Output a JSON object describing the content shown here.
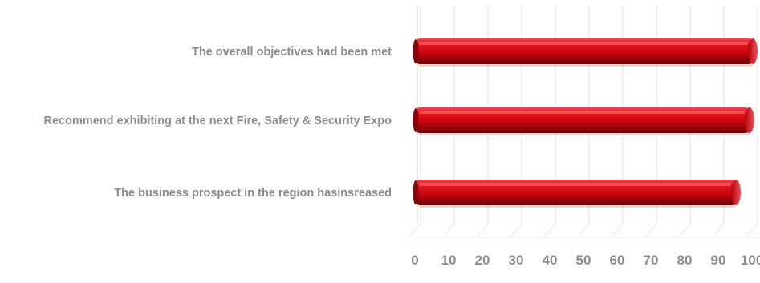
{
  "chart_data": {
    "type": "bar",
    "orientation": "horizontal",
    "style": "3d",
    "categories": [
      "The overall objectives had been met",
      "Recommend exhibiting at the next Fire, Safety & Security Expo",
      "The business prospect in the region hasinsreased"
    ],
    "values": [
      100,
      99,
      95
    ],
    "xlim": [
      0,
      100
    ],
    "xticks": [
      0,
      10,
      20,
      30,
      40,
      50,
      60,
      70,
      80,
      90,
      100
    ],
    "grid": true,
    "colors": {
      "bar": "#d40612",
      "bar_dark": "#7a0208",
      "bar_light": "#f24a52",
      "label": "#8c8c8c",
      "grid": "#e6e6e6"
    }
  }
}
